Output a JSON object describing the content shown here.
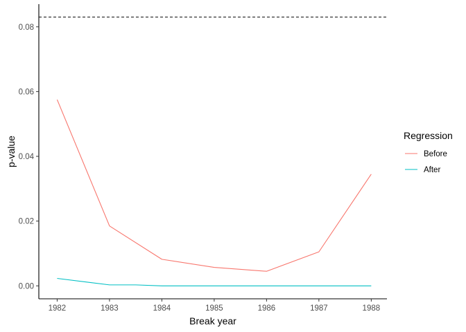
{
  "chart_data": {
    "type": "line",
    "title": "",
    "xlabel": "Break year",
    "ylabel": "p-value",
    "x": [
      1982,
      1983,
      1984,
      1985,
      1986,
      1987,
      1988
    ],
    "x_ticks": [
      "1982",
      "1983",
      "1984",
      "1985",
      "1986",
      "1987",
      "1988"
    ],
    "y_ticks": [
      "0.00",
      "0.02",
      "0.04",
      "0.06",
      "0.08"
    ],
    "xlim": [
      1981.65,
      1988.3
    ],
    "ylim": [
      -0.004,
      0.087
    ],
    "grid": false,
    "legend": {
      "title": "Regression",
      "position": "right"
    },
    "reference_line": {
      "y": 0.083,
      "style": "dashed",
      "color": "#000000"
    },
    "series": [
      {
        "name": "Before",
        "color": "#F8766D",
        "x": [
          1982,
          1983,
          1984,
          1985,
          1986,
          1987,
          1988
        ],
        "values": [
          0.0575,
          0.0185,
          0.0082,
          0.0057,
          0.0045,
          0.0105,
          0.0345
        ]
      },
      {
        "name": "After",
        "color": "#00BFC4",
        "x": [
          1982,
          1983,
          1983.5,
          1984,
          1985,
          1986,
          1987,
          1988
        ],
        "values": [
          0.0023,
          0.0003,
          0.0003,
          0.0,
          0.0,
          0.0,
          0.0,
          0.0
        ]
      }
    ]
  }
}
